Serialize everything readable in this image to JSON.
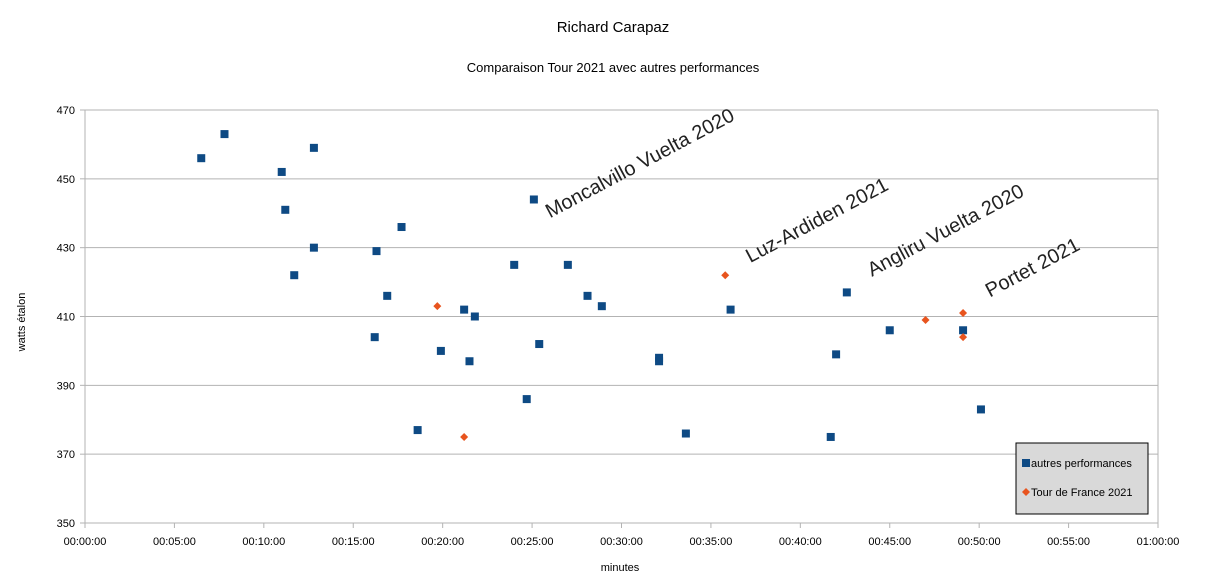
{
  "chart_data": {
    "type": "scatter",
    "title": "Richard Carapaz",
    "subtitle": "Comparaison Tour 2021 avec autres performances",
    "xlabel": "minutes",
    "ylabel": "watts étalon",
    "x_unit": "minutes",
    "xlim": [
      0,
      60
    ],
    "ylim": [
      350,
      470
    ],
    "x_ticks": [
      0,
      5,
      10,
      15,
      20,
      25,
      30,
      35,
      40,
      45,
      50,
      55,
      60
    ],
    "x_tick_labels": [
      "00:00:00",
      "00:05:00",
      "00:10:00",
      "00:15:00",
      "00:20:00",
      "00:25:00",
      "00:30:00",
      "00:35:00",
      "00:40:00",
      "00:45:00",
      "00:50:00",
      "00:55:00",
      "01:00:00"
    ],
    "y_ticks": [
      350,
      370,
      390,
      410,
      430,
      450,
      470
    ],
    "grid": "horizontal",
    "legend_position": "bottom-right",
    "series": [
      {
        "name": "autres performances",
        "marker": "square",
        "color": "#0e4a84",
        "points": [
          {
            "x": 6.5,
            "y": 456
          },
          {
            "x": 7.8,
            "y": 463
          },
          {
            "x": 11.0,
            "y": 452
          },
          {
            "x": 11.2,
            "y": 441
          },
          {
            "x": 11.7,
            "y": 422
          },
          {
            "x": 12.8,
            "y": 459
          },
          {
            "x": 12.8,
            "y": 430
          },
          {
            "x": 16.2,
            "y": 404
          },
          {
            "x": 16.3,
            "y": 429
          },
          {
            "x": 16.9,
            "y": 416
          },
          {
            "x": 17.7,
            "y": 436
          },
          {
            "x": 18.6,
            "y": 377
          },
          {
            "x": 19.9,
            "y": 400
          },
          {
            "x": 21.2,
            "y": 412
          },
          {
            "x": 21.5,
            "y": 397
          },
          {
            "x": 21.8,
            "y": 410
          },
          {
            "x": 24.0,
            "y": 425
          },
          {
            "x": 24.7,
            "y": 386
          },
          {
            "x": 25.1,
            "y": 444
          },
          {
            "x": 25.4,
            "y": 402
          },
          {
            "x": 27.0,
            "y": 425
          },
          {
            "x": 28.1,
            "y": 416
          },
          {
            "x": 28.9,
            "y": 413
          },
          {
            "x": 32.1,
            "y": 398
          },
          {
            "x": 32.1,
            "y": 397
          },
          {
            "x": 33.6,
            "y": 376
          },
          {
            "x": 36.1,
            "y": 412
          },
          {
            "x": 41.7,
            "y": 375
          },
          {
            "x": 42.0,
            "y": 399
          },
          {
            "x": 42.6,
            "y": 417
          },
          {
            "x": 45.0,
            "y": 406
          },
          {
            "x": 49.1,
            "y": 406
          },
          {
            "x": 50.1,
            "y": 383
          }
        ]
      },
      {
        "name": "Tour de France 2021",
        "marker": "diamond",
        "color": "#e8541e",
        "points": [
          {
            "x": 19.7,
            "y": 413
          },
          {
            "x": 21.2,
            "y": 375
          },
          {
            "x": 35.8,
            "y": 422
          },
          {
            "x": 47.0,
            "y": 409
          },
          {
            "x": 49.1,
            "y": 411
          },
          {
            "x": 49.1,
            "y": 404
          }
        ]
      }
    ],
    "annotations": [
      {
        "text": "Moncalvillo Vuelta 2020",
        "x": 26.0,
        "y": 438.5
      },
      {
        "text": "Luz-Ardiden 2021",
        "x": 37.2,
        "y": 425.5
      },
      {
        "text": "Angliru Vuelta 2020",
        "x": 44.0,
        "y": 421.5
      },
      {
        "text": "Portet 2021",
        "x": 50.6,
        "y": 415.5
      }
    ]
  }
}
